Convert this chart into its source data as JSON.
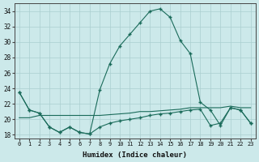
{
  "xlabel": "Humidex (Indice chaleur)",
  "background_color": "#cce9ea",
  "grid_color": "#aacfcf",
  "line_color": "#1a6b5a",
  "xlim": [
    -0.5,
    23.5
  ],
  "ylim": [
    17.5,
    35
  ],
  "xticks": [
    0,
    1,
    2,
    3,
    4,
    5,
    6,
    7,
    8,
    9,
    10,
    11,
    12,
    13,
    14,
    15,
    16,
    17,
    18,
    19,
    20,
    21,
    22,
    23
  ],
  "yticks": [
    18,
    20,
    22,
    24,
    26,
    28,
    30,
    32,
    34
  ],
  "series": [
    [
      23.5,
      21.2,
      20.8,
      19.0,
      18.3,
      19.0,
      18.3,
      18.1,
      19.0,
      19.5,
      19.8,
      20.0,
      20.2,
      20.5,
      20.7,
      20.8,
      21.0,
      21.2,
      21.3,
      19.2,
      19.5,
      21.5,
      21.2,
      19.5
    ],
    [
      20.2,
      20.2,
      20.5,
      20.5,
      20.5,
      20.5,
      20.5,
      20.5,
      20.5,
      20.6,
      20.7,
      20.8,
      21.0,
      21.0,
      21.1,
      21.2,
      21.3,
      21.5,
      21.5,
      21.5,
      21.5,
      21.7,
      21.5,
      21.5
    ],
    [
      23.5,
      21.2,
      20.8,
      19.0,
      18.3,
      19.0,
      18.3,
      18.1,
      23.8,
      27.2,
      29.5,
      31.0,
      32.5,
      34.0,
      34.3,
      33.2,
      30.2,
      28.5,
      22.2,
      21.2,
      19.2,
      21.5,
      21.2,
      19.5
    ]
  ]
}
